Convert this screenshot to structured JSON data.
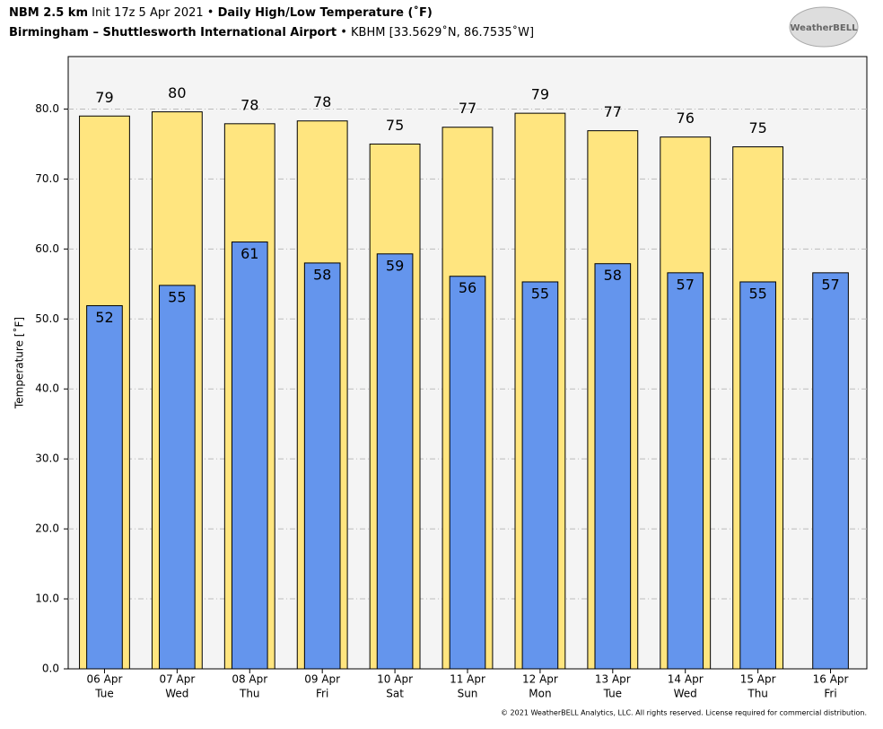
{
  "chart_data": {
    "type": "bar",
    "header": {
      "model": "NBM 2.5 km",
      "init": "Init 17z 5 Apr 2021",
      "product": "Daily High/Low Temperature (˚F)",
      "station": "Birmingham – Shuttlesworth International Airport",
      "station_info": "KBHM [33.5629˚N, 86.7535˚W]"
    },
    "logo": "WeatherBELL",
    "copyright": "© 2021 WeatherBELL Analytics, LLC. All rights reserved. License required for commercial distribution.",
    "ylabel": "Temperature [˚F]",
    "categories": [
      "06 Apr",
      "07 Apr",
      "08 Apr",
      "09 Apr",
      "10 Apr",
      "11 Apr",
      "12 Apr",
      "13 Apr",
      "14 Apr",
      "15 Apr",
      "16 Apr"
    ],
    "weekdays": [
      "Tue",
      "Wed",
      "Thu",
      "Fri",
      "Sat",
      "Sun",
      "Mon",
      "Tue",
      "Wed",
      "Thu",
      "Fri"
    ],
    "series": [
      {
        "color": "#ffe57f",
        "values": [
          79.0,
          79.6,
          77.9,
          78.3,
          75.0,
          77.4,
          79.4,
          76.9,
          76.0,
          74.6,
          null
        ],
        "value_labels": [
          "79",
          "80",
          "78",
          "78",
          "75",
          "77",
          "79",
          "77",
          "76",
          "75",
          null
        ]
      },
      {
        "color": "#6495ed",
        "values": [
          51.9,
          54.8,
          61.0,
          58.0,
          59.3,
          56.1,
          55.3,
          57.9,
          56.6,
          55.3,
          56.6
        ],
        "value_labels": [
          "52",
          "55",
          "61",
          "58",
          "59",
          "56",
          "55",
          "58",
          "57",
          "55",
          "57"
        ]
      }
    ],
    "ylim": [
      0,
      87.5
    ],
    "yticks": [
      {
        "value": 0,
        "label": "0.0"
      },
      {
        "value": 10,
        "label": "10.0"
      },
      {
        "value": 20,
        "label": "20.0"
      },
      {
        "value": 30,
        "label": "30.0"
      },
      {
        "value": 40,
        "label": "40.0"
      },
      {
        "value": 50,
        "label": "50.0"
      },
      {
        "value": 60,
        "label": "60.0"
      },
      {
        "value": 70,
        "label": "70.0"
      },
      {
        "value": 80,
        "label": "80.0"
      }
    ],
    "grid": true
  }
}
